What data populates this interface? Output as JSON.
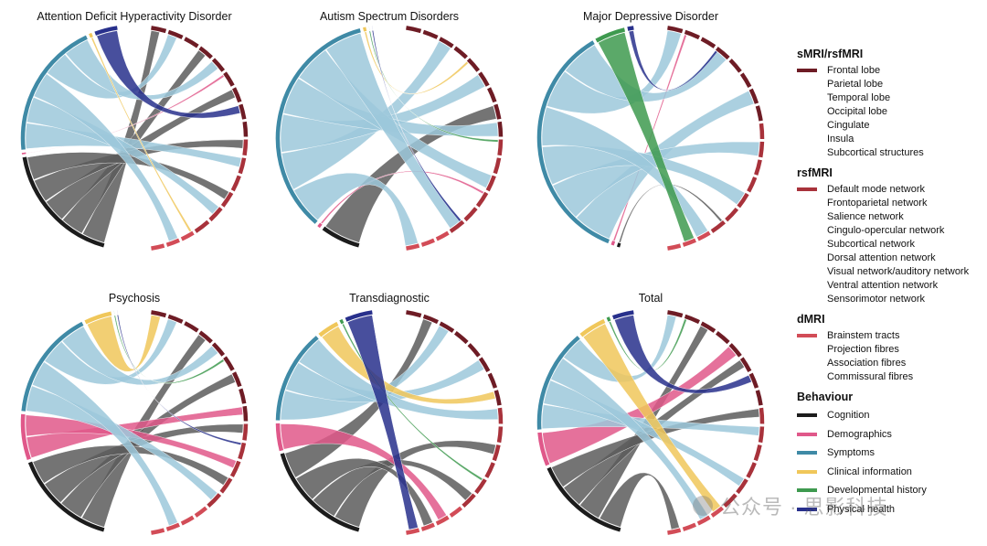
{
  "colors": {
    "frontal": "#6e1c25",
    "dmn": "#a8323b",
    "dmri": "#d24c57",
    "cognition": "#1c1c1c",
    "demographics": "#e0588a",
    "symptoms": "#3f8aa6",
    "clinical": "#f0c75a",
    "developmental": "#3e9a4f",
    "physical": "#28308c",
    "symptoms_ribbon": "#9cc8da",
    "cognition_ribbon": "#5c5c5c"
  },
  "chart_data": [
    {
      "type": "chord",
      "title": "Attention Deficit Hyperactivity Disorder",
      "behaviour_shares": {
        "Cognition": 0.42,
        "Demographics": 0.015,
        "Symptoms": 0.46,
        "Clinical information": 0.02,
        "Developmental history": 0.0,
        "Physical health": 0.085
      },
      "brain_shares": {
        "sMRI/rsfMRI": 0.5,
        "rsfMRI": 0.35,
        "dMRI": 0.15
      }
    },
    {
      "type": "chord",
      "title": "Autism Spectrum Disorders",
      "behaviour_shares": {
        "Cognition": 0.14,
        "Demographics": 0.02,
        "Symptoms": 0.8,
        "Clinical information": 0.02,
        "Developmental history": 0.01,
        "Physical health": 0.01
      },
      "brain_shares": {
        "sMRI/rsfMRI": 0.5,
        "rsfMRI": 0.35,
        "dMRI": 0.15
      }
    },
    {
      "type": "chord",
      "title": "Major Depressive Disorder",
      "behaviour_shares": {
        "Cognition": 0.02,
        "Demographics": 0.02,
        "Symptoms": 0.82,
        "Clinical information": 0.0,
        "Developmental history": 0.11,
        "Physical health": 0.03
      },
      "brain_shares": {
        "sMRI/rsfMRI": 0.45,
        "rsfMRI": 0.4,
        "dMRI": 0.15
      }
    },
    {
      "type": "chord",
      "title": "Psychosis",
      "behaviour_shares": {
        "Cognition": 0.35,
        "Demographics": 0.16,
        "Symptoms": 0.37,
        "Clinical information": 0.1,
        "Developmental history": 0.01,
        "Physical health": 0.01
      },
      "brain_shares": {
        "sMRI/rsfMRI": 0.5,
        "rsfMRI": 0.3,
        "dMRI": 0.2
      }
    },
    {
      "type": "chord",
      "title": "Transdiagnostic",
      "behaviour_shares": {
        "Cognition": 0.38,
        "Demographics": 0.1,
        "Symptoms": 0.32,
        "Clinical information": 0.08,
        "Developmental history": 0.02,
        "Physical health": 0.1
      },
      "brain_shares": {
        "sMRI/rsfMRI": 0.45,
        "rsfMRI": 0.35,
        "dMRI": 0.2
      }
    },
    {
      "type": "chord",
      "title": "Total",
      "behaviour_shares": {
        "Cognition": 0.33,
        "Demographics": 0.12,
        "Symptoms": 0.35,
        "Clinical information": 0.1,
        "Developmental history": 0.02,
        "Physical health": 0.08
      },
      "brain_shares": {
        "sMRI/rsfMRI": 0.45,
        "rsfMRI": 0.35,
        "dMRI": 0.2
      }
    }
  ],
  "legend": {
    "groups": [
      {
        "title": "sMRI/rsfMRI",
        "color_key": "frontal",
        "items": [
          "Frontal lobe",
          "Parietal lobe",
          "Temporal lobe",
          "Occipital lobe",
          "Cingulate",
          "Insula",
          "Subcortical structures"
        ]
      },
      {
        "title": "rsfMRI",
        "color_key": "dmn",
        "items": [
          "Default mode network",
          "Frontoparietal network",
          "Salience network",
          "Cingulo-opercular network",
          "Subcortical network",
          "Dorsal attention network",
          "Visual network/auditory network",
          "Ventral attention network",
          "Sensorimotor network"
        ]
      },
      {
        "title": "dMRI",
        "color_key": "dmri",
        "items": [
          "Brainstem tracts",
          "Projection fibres",
          "Association fibres",
          "Commissural fibres"
        ]
      }
    ],
    "behaviour": {
      "title": "Behaviour",
      "items": [
        {
          "label": "Cognition",
          "color_key": "cognition"
        },
        {
          "label": "Demographics",
          "color_key": "demographics"
        },
        {
          "label": "Symptoms",
          "color_key": "symptoms"
        },
        {
          "label": "Clinical information",
          "color_key": "clinical"
        },
        {
          "label": "Developmental history",
          "color_key": "developmental"
        },
        {
          "label": "Physical health",
          "color_key": "physical"
        }
      ]
    }
  },
  "watermark": "公众号 · 思影科技"
}
